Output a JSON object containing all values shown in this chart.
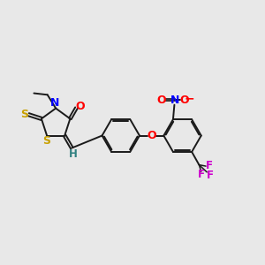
{
  "bg_color": "#e8e8e8",
  "bond_color": "#1a1a1a",
  "bond_width": 1.4,
  "dbo": 0.06,
  "figsize": [
    3.0,
    3.0
  ],
  "dpi": 100,
  "xlim": [
    0,
    10
  ],
  "ylim": [
    0,
    10
  ]
}
